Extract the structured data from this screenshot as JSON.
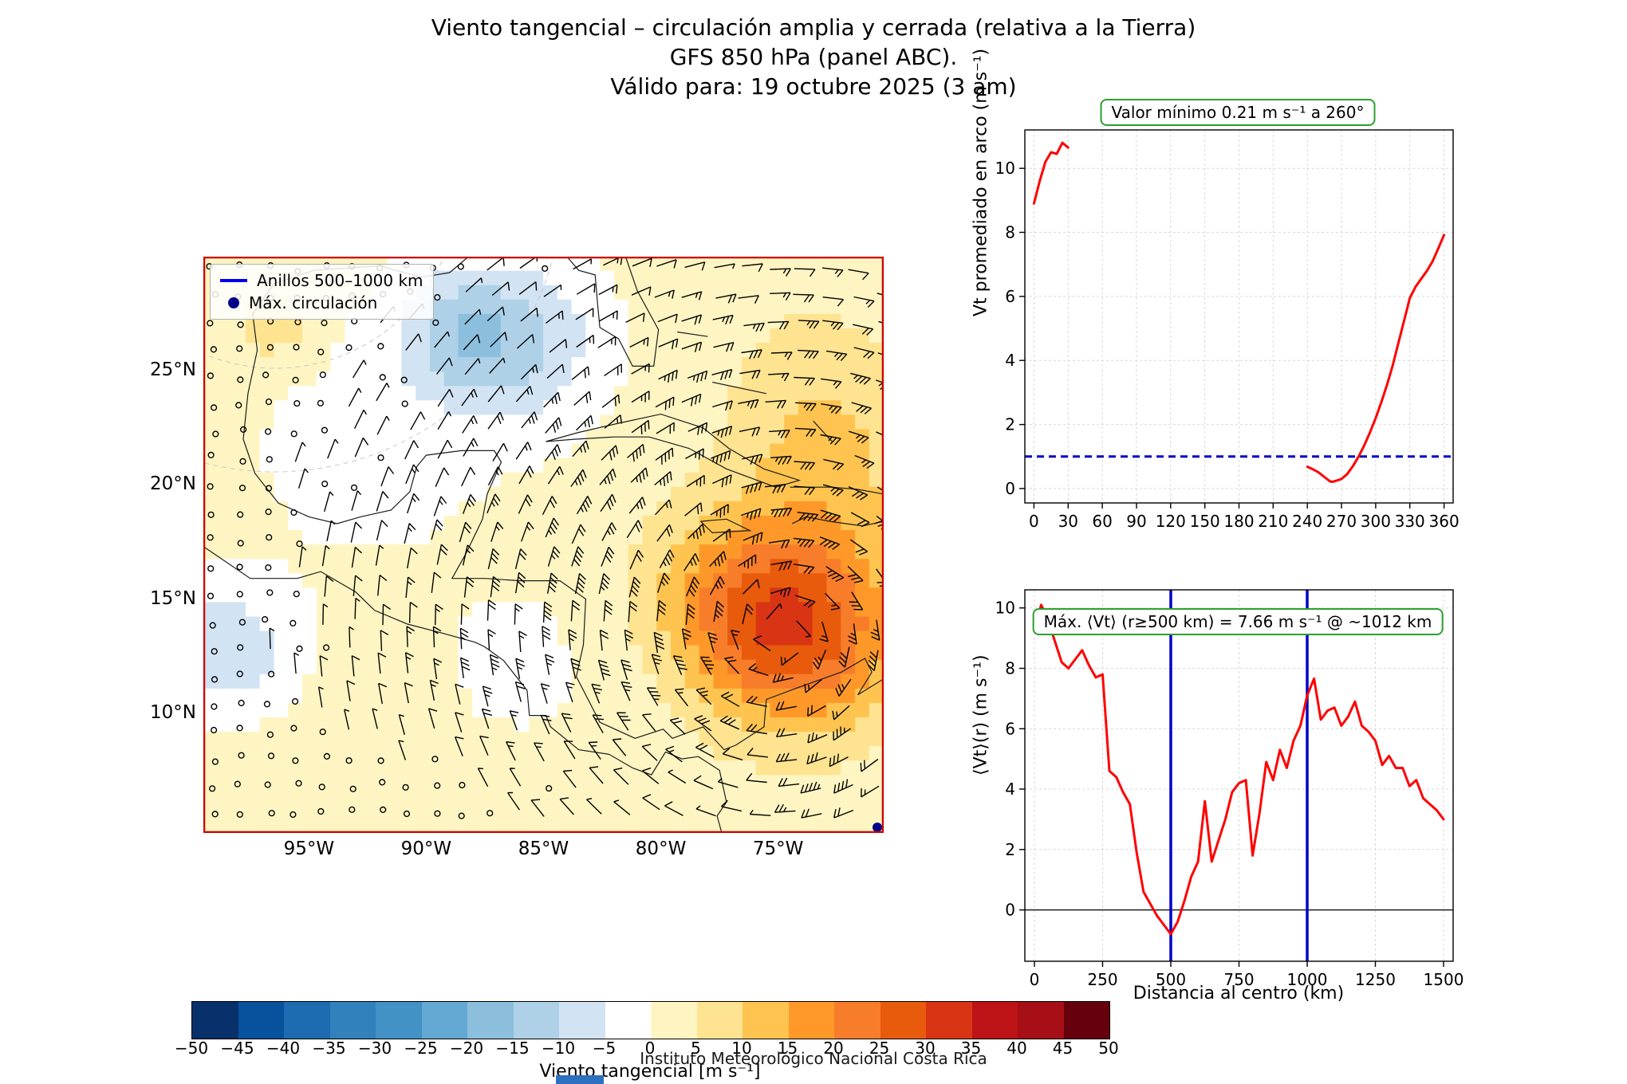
{
  "title": {
    "line1": "Viento tangencial – circulación amplia y cerrada (relativa a la Tierra)",
    "line2": "GFS 850 hPa (panel ABC).",
    "line3": "Válido para: 19 octubre 2025 (3 am)"
  },
  "footer": "Instituto Meteorológico Nacional Costa Rica",
  "colors": {
    "red": "#ff0000",
    "blue": "#0000cc",
    "green_box": "#2ca02c",
    "map_border": "#cc0000",
    "legend_line_blue": "#0000ee",
    "legend_dot_blue": "#00008b"
  },
  "map": {
    "border_color": "#cc0000",
    "extent": {
      "lon_min": -99.5,
      "lon_max": -70.5,
      "lat_min": 4.75,
      "lat_max": 30
    },
    "lat_ticks": [
      {
        "label": "25°N",
        "lat": 25
      },
      {
        "label": "20°N",
        "lat": 20
      },
      {
        "label": "15°N",
        "lat": 15
      },
      {
        "label": "10°N",
        "lat": 10
      }
    ],
    "lon_ticks": [
      {
        "label": "95°W",
        "lon": -95
      },
      {
        "label": "90°W",
        "lon": -90
      },
      {
        "label": "85°W",
        "lon": -85
      },
      {
        "label": "80°W",
        "lon": -80
      },
      {
        "label": "75°W",
        "lon": -75
      }
    ],
    "legend": [
      {
        "symbol": "line",
        "label": "Anillos 500–1000 km"
      },
      {
        "symbol": "dot",
        "label": "Máx. circulación"
      }
    ],
    "vortex": {
      "lon": -74.8,
      "lat": 13.5,
      "max_speed_kt": 30,
      "radius_deg": 6.5
    },
    "shading": {
      "base": 2.0,
      "blobs": [
        {
          "lon": -74.2,
          "lat": 13.6,
          "amp": 27,
          "sigma": 3.0
        },
        {
          "lon": -77.5,
          "lat": 15.5,
          "amp": 8,
          "sigma": 2.5
        },
        {
          "lon": -73.0,
          "lat": 20.8,
          "amp": 9,
          "sigma": 2.8
        },
        {
          "lon": -73.5,
          "lat": 25.5,
          "amp": 3.5,
          "sigma": 2.5
        },
        {
          "lon": -86.3,
          "lat": 26.3,
          "amp": -13,
          "sigma": 2.6
        },
        {
          "lon": -88.8,
          "lat": 26.8,
          "amp": -8,
          "sigma": 1.8
        },
        {
          "lon": -98.5,
          "lat": 12.8,
          "amp": -11,
          "sigma": 2.0
        },
        {
          "lon": -92.5,
          "lat": 21.5,
          "amp": -3.6,
          "sigma": 4.0
        },
        {
          "lon": -86.0,
          "lat": 12.0,
          "amp": -3.0,
          "sigma": 2.8
        },
        {
          "lon": -96.6,
          "lat": 26.9,
          "amp": 7,
          "sigma": 1.1
        }
      ]
    }
  },
  "colorbar": {
    "label": "Viento tangencial [m s⁻¹]",
    "vmin": -50,
    "vmax": 50,
    "step": 5,
    "ticks": [
      "−50",
      "−45",
      "−40",
      "−35",
      "−30",
      "−25",
      "−20",
      "−15",
      "−10",
      "−5",
      "0",
      "5",
      "10",
      "15",
      "20",
      "25",
      "30",
      "35",
      "40",
      "45",
      "50"
    ],
    "colors": [
      "#08306b",
      "#08519c",
      "#1d6cb1",
      "#3181bd",
      "#4292c6",
      "#64a9d3",
      "#8bbfdd",
      "#aed1e7",
      "#d2e3f3",
      "#ffffff",
      "#fff5c3",
      "#fee391",
      "#fec44f",
      "#fe9929",
      "#f87d2a",
      "#e85b0c",
      "#d93515",
      "#bd1316",
      "#a50f15",
      "#67000d"
    ],
    "clipped_swatch_color": "#2e6fbf"
  },
  "chart_data": [
    {
      "type": "line",
      "title": "Valor mínimo 0.21 m s⁻¹ a 260°",
      "ylabel": "Vt promediado en arco (m s⁻¹)",
      "xlabel": "",
      "x_ticks": [
        0,
        30,
        60,
        90,
        120,
        150,
        180,
        210,
        240,
        270,
        300,
        330,
        360
      ],
      "y_ticks": [
        0,
        2,
        4,
        6,
        8,
        10
      ],
      "xlim": [
        -8,
        368
      ],
      "ylim": [
        -0.45,
        11.2
      ],
      "ref_line_y": 1.0,
      "min_value": 0.21,
      "min_angle_deg": 260,
      "segments": [
        {
          "x": [
            0,
            5,
            10,
            15,
            20,
            25,
            30
          ],
          "y": [
            8.9,
            9.6,
            10.2,
            10.5,
            10.45,
            10.8,
            10.65
          ]
        },
        {
          "x": [
            240,
            245,
            250,
            255,
            260,
            262,
            265,
            270,
            275,
            280,
            285,
            290,
            295,
            300,
            305,
            310,
            315,
            320,
            325,
            330,
            335,
            340,
            345,
            350,
            355,
            360
          ],
          "y": [
            0.68,
            0.6,
            0.5,
            0.36,
            0.22,
            0.21,
            0.24,
            0.3,
            0.45,
            0.7,
            1.0,
            1.35,
            1.75,
            2.2,
            2.7,
            3.25,
            3.85,
            4.55,
            5.25,
            5.95,
            6.3,
            6.55,
            6.8,
            7.1,
            7.5,
            7.92
          ]
        }
      ]
    },
    {
      "type": "line",
      "title": "Máx. ⟨Vt⟩ (r≥500 km) = 7.66 m s⁻¹ @ ~1012 km",
      "ylabel": "⟨Vt⟩(r) (m s⁻¹)",
      "xlabel": "Distancia al centro (km)",
      "x_ticks": [
        0,
        250,
        500,
        750,
        1000,
        1250,
        1500
      ],
      "y_ticks": [
        0,
        2,
        4,
        6,
        8,
        10
      ],
      "xlim": [
        -35,
        1535
      ],
      "ylim": [
        -1.7,
        10.6
      ],
      "vlines": [
        500,
        1000
      ],
      "hline_y": 0,
      "max_value": 7.66,
      "max_radius_km": 1012,
      "x": [
        0,
        25,
        50,
        75,
        100,
        125,
        150,
        175,
        200,
        225,
        250,
        275,
        300,
        325,
        350,
        375,
        400,
        425,
        450,
        475,
        500,
        525,
        550,
        575,
        600,
        625,
        650,
        675,
        700,
        725,
        750,
        775,
        800,
        825,
        850,
        875,
        900,
        925,
        950,
        975,
        1000,
        1025,
        1050,
        1075,
        1100,
        1125,
        1150,
        1175,
        1200,
        1225,
        1250,
        1275,
        1300,
        1325,
        1350,
        1375,
        1400,
        1425,
        1450,
        1475,
        1500
      ],
      "y": [
        9.3,
        10.1,
        9.6,
        8.9,
        8.2,
        8.0,
        8.3,
        8.6,
        8.1,
        7.7,
        7.8,
        4.6,
        4.4,
        3.9,
        3.5,
        1.9,
        0.6,
        0.2,
        -0.2,
        -0.5,
        -0.8,
        -0.4,
        0.3,
        1.1,
        1.6,
        3.6,
        1.6,
        2.3,
        3.0,
        3.9,
        4.2,
        4.3,
        1.8,
        3.2,
        4.9,
        4.3,
        5.3,
        4.7,
        5.6,
        6.1,
        7.1,
        7.66,
        6.3,
        6.6,
        6.7,
        6.1,
        6.4,
        6.9,
        6.1,
        5.9,
        5.6,
        4.8,
        5.1,
        4.7,
        4.7,
        4.1,
        4.3,
        3.7,
        3.5,
        3.3,
        3.0
      ]
    }
  ]
}
